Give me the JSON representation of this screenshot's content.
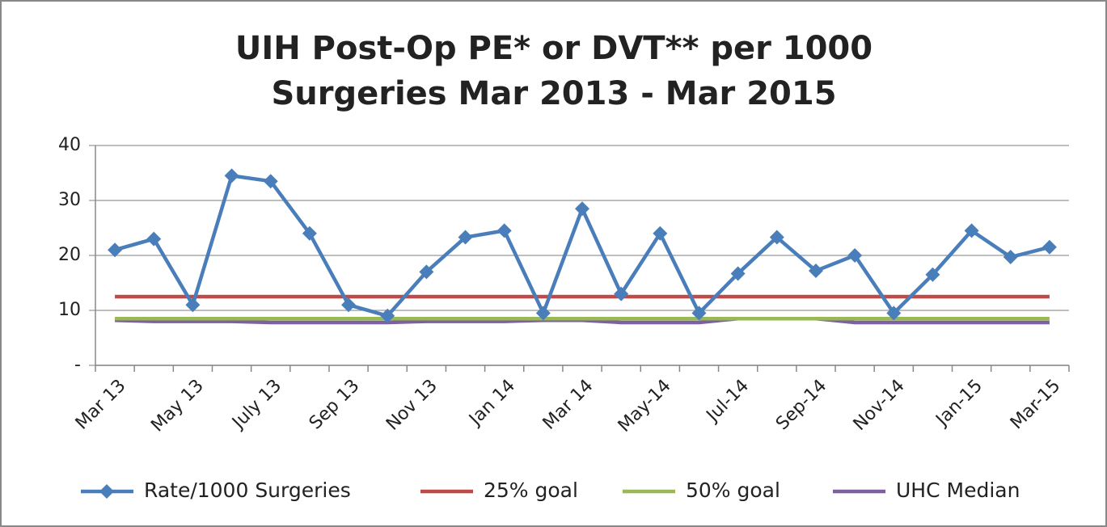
{
  "chart_data": {
    "type": "line",
    "title": [
      "UIH Post-Op PE* or DVT** per 1000",
      "Surgeries Mar 2013 - Mar 2015"
    ],
    "categories": [
      "Mar 13",
      null,
      "May 13",
      null,
      "July 13",
      null,
      "Sep 13",
      null,
      "Nov 13",
      null,
      "Jan 14",
      null,
      "Mar 14",
      null,
      "May-14",
      null,
      "Jul-14",
      null,
      "Sep-14",
      null,
      "Nov-14",
      null,
      "Jan-15",
      null,
      "Mar-15"
    ],
    "series": [
      {
        "name": "Rate/1000 Surgeries",
        "color": "#4a7ebb",
        "marker": "diamond",
        "values": [
          21,
          23,
          11,
          34.5,
          33.5,
          24,
          11,
          9,
          17,
          23.3,
          24.5,
          9.5,
          28.5,
          13,
          24,
          9.5,
          16.7,
          23.3,
          17.2,
          20,
          9.5,
          16.5,
          24.5,
          19.7,
          21.5
        ]
      },
      {
        "name": "25% goal",
        "color": "#be4b48",
        "values": [
          12.5,
          12.5,
          12.5,
          12.5,
          12.5,
          12.5,
          12.5,
          12.5,
          12.5,
          12.5,
          12.5,
          12.5,
          12.5,
          12.5,
          12.5,
          12.5,
          12.5,
          12.5,
          12.5,
          12.5,
          12.5,
          12.5,
          12.5,
          12.5,
          12.5
        ]
      },
      {
        "name": "50% goal",
        "color": "#98b954",
        "values": [
          8.5,
          8.5,
          8.5,
          8.5,
          8.5,
          8.5,
          8.5,
          8.5,
          8.5,
          8.5,
          8.5,
          8.5,
          8.5,
          8.5,
          8.5,
          8.5,
          8.5,
          8.5,
          8.5,
          8.5,
          8.5,
          8.5,
          8.5,
          8.5,
          8.5
        ]
      },
      {
        "name": "UHC Median",
        "color": "#7d60a0",
        "values": [
          8.2,
          8,
          8,
          8,
          7.8,
          7.8,
          7.8,
          7.8,
          8,
          8,
          8,
          8.2,
          8.2,
          7.8,
          7.8,
          7.8,
          8.5,
          8.5,
          8.5,
          7.8,
          7.8,
          7.8,
          7.8,
          7.8,
          7.8
        ]
      }
    ],
    "ylim": [
      0,
      40
    ],
    "yticks": [
      {
        "value": 0,
        "label": "-"
      },
      10,
      20,
      30,
      40
    ],
    "grid": true,
    "legend": "bottom"
  }
}
